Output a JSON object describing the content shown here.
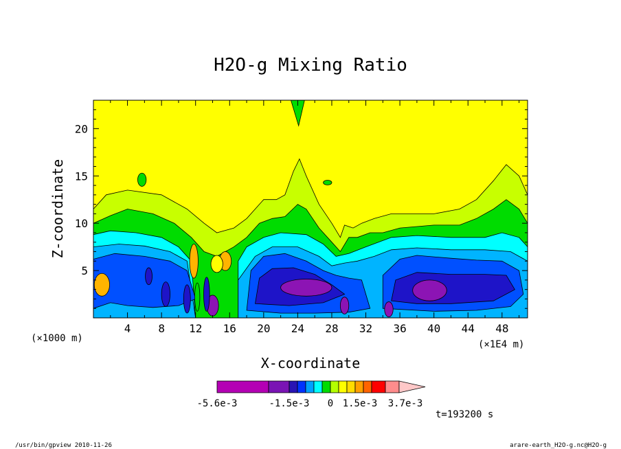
{
  "chart_data": {
    "type": "contour",
    "title": "H2O-g Mixing Ratio",
    "xlabel": "X-coordinate",
    "ylabel": "Z-coordinate",
    "x_unit_left": "(×1000 m)",
    "x_unit_right": "(×1E4 m)",
    "x_ticks": [
      "4",
      "8",
      "12",
      "16",
      "20",
      "24",
      "28",
      "32",
      "36",
      "40",
      "44",
      "48"
    ],
    "y_ticks": [
      "5",
      "10",
      "15",
      "20"
    ],
    "xlim": [
      0,
      51
    ],
    "ylim": [
      0,
      23
    ],
    "colorbar": {
      "labels": [
        "-5.6e-3",
        "-1.5e-3",
        "0",
        "1.5e-3",
        "3.7e-3"
      ],
      "colors": [
        "#b400b4",
        "#7a14b4",
        "#2a14b4",
        "#0032ff",
        "#00a0ff",
        "#00ffff",
        "#00dc00",
        "#b4ff00",
        "#ffff00",
        "#ffdc00",
        "#ffa000",
        "#ff6400",
        "#ff0000",
        "#ff8c8c",
        "#ffc8c8"
      ]
    },
    "band_colors": {
      "purple": "#8c14b4",
      "darkblue": "#1e14c8",
      "blue": "#0050ff",
      "lightblue": "#00b4ff",
      "cyan": "#00ffff",
      "green": "#00dc00",
      "yellowgreen": "#c8ff00",
      "yellow": "#ffff00",
      "orange": "#ffb400"
    }
  },
  "time_label": "t=193200 s",
  "footer_left": "/usr/bin/gpview   2010-11-26",
  "footer_right": "arare-earth_H2O-g.nc@H2O-g"
}
